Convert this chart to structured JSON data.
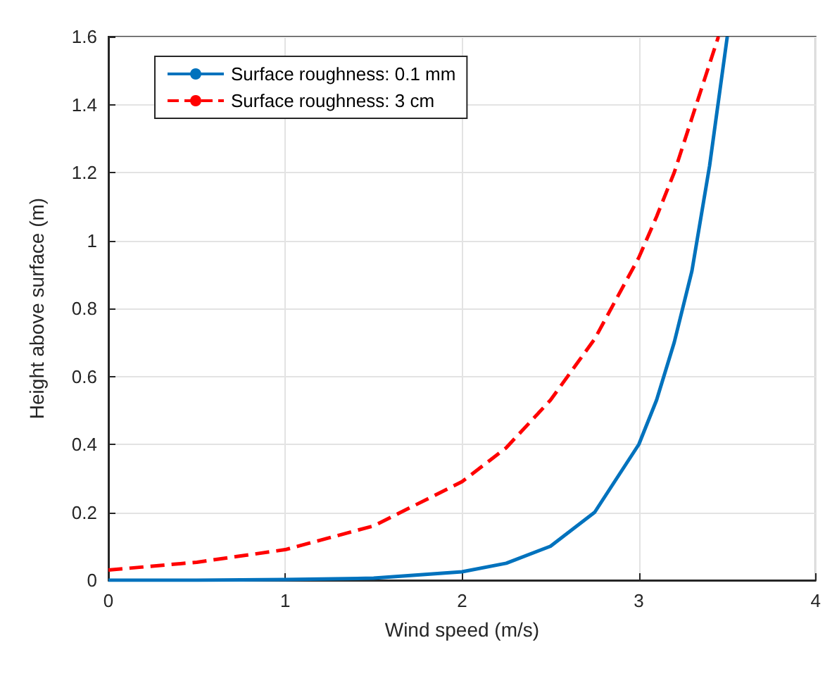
{
  "chart_data": {
    "type": "line",
    "xlabel": "Wind speed (m/s)",
    "ylabel": "Height above surface (m)",
    "xlim": [
      0,
      4
    ],
    "xticks": [
      0,
      1,
      2,
      3,
      4
    ],
    "ylim": [
      0,
      1.6
    ],
    "yticks": [
      0,
      0.2,
      0.4,
      0.6,
      0.8,
      1,
      1.2,
      1.4,
      1.6
    ],
    "grid": true,
    "legend": "top left",
    "marker": "none",
    "series": [
      {
        "name": "Surface roughness: 0.1 mm",
        "color": "#0072bd",
        "line_style": "solid",
        "x": [
          0,
          0.5,
          1,
          1.5,
          2,
          2.25,
          2.5,
          2.75,
          3,
          3.1,
          3.2,
          3.3,
          3.4,
          3.5
        ],
        "values": [
          0,
          0,
          0.002,
          0.006,
          0.025,
          0.05,
          0.1,
          0.2,
          0.4,
          0.53,
          0.7,
          0.91,
          1.22,
          1.6
        ]
      },
      {
        "name": "Surface roughness: 3 cm",
        "color": "#ff0000",
        "line_style": "dashed",
        "x": [
          0,
          0.5,
          1,
          1.5,
          2,
          2.25,
          2.5,
          2.75,
          3,
          3.1,
          3.2,
          3.3,
          3.45
        ],
        "values": [
          0.03,
          0.053,
          0.09,
          0.16,
          0.29,
          0.39,
          0.53,
          0.71,
          0.95,
          1.07,
          1.2,
          1.36,
          1.6
        ]
      }
    ]
  }
}
